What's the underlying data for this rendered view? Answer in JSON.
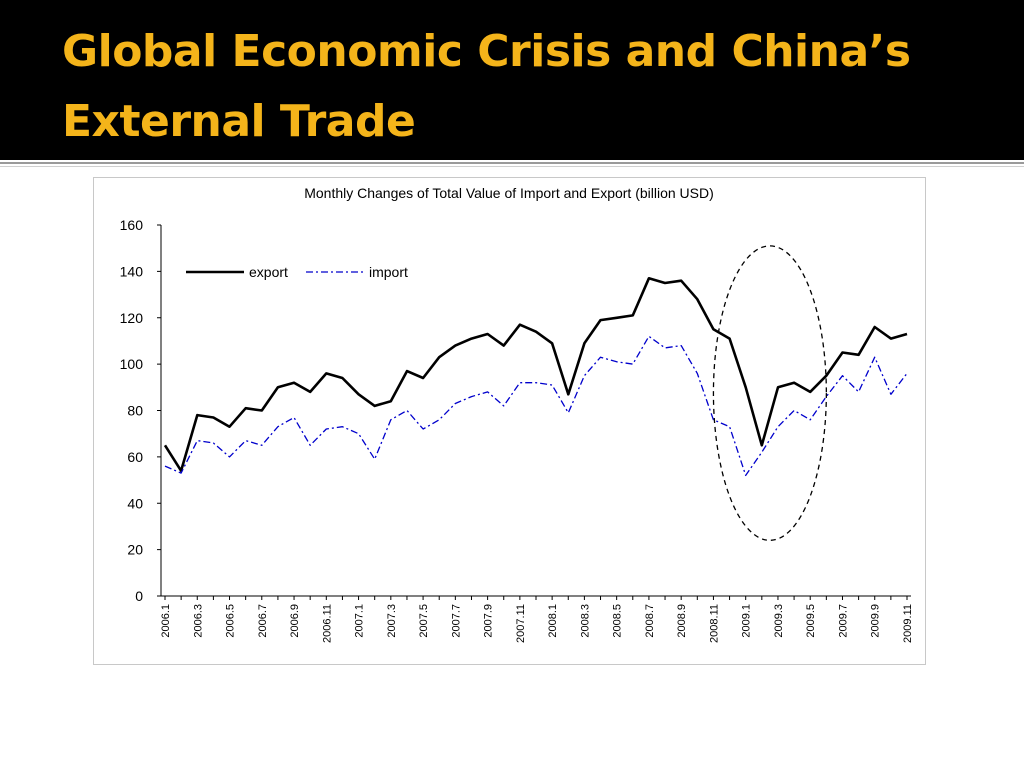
{
  "slide": {
    "title_line1": "Global Economic Crisis and China’s",
    "title_line2": "External Trade"
  },
  "colors": {
    "background_title": "#000000",
    "title_text": "#f4b41a",
    "export_line": "#000000",
    "import_line": "#0000cc"
  },
  "chart_data": {
    "type": "line",
    "title": "Monthly Changes of Total Value of Import and Export (billion USD)",
    "xlabel": "",
    "ylabel": "",
    "ylim": [
      0,
      160
    ],
    "yticks": [
      0,
      20,
      40,
      60,
      80,
      100,
      120,
      140,
      160
    ],
    "x": [
      "2006.1",
      "2006.2",
      "2006.3",
      "2006.4",
      "2006.5",
      "2006.6",
      "2006.7",
      "2006.8",
      "2006.9",
      "2006.10",
      "2006.11",
      "2006.12",
      "2007.1",
      "2007.2",
      "2007.3",
      "2007.4",
      "2007.5",
      "2007.6",
      "2007.7",
      "2007.8",
      "2007.9",
      "2007.10",
      "2007.11",
      "2007.12",
      "2008.1",
      "2008.2",
      "2008.3",
      "2008.4",
      "2008.5",
      "2008.6",
      "2008.7",
      "2008.8",
      "2008.9",
      "2008.10",
      "2008.11",
      "2008.12",
      "2009.1",
      "2009.2",
      "2009.3",
      "2009.4",
      "2009.5",
      "2009.6",
      "2009.7",
      "2009.8",
      "2009.9",
      "2009.10",
      "2009.11"
    ],
    "xtick_labels": [
      "2006.1",
      "2006.3",
      "2006.5",
      "2006.7",
      "2006.9",
      "2006.11",
      "2007.1",
      "2007.3",
      "2007.5",
      "2007.7",
      "2007.9",
      "2007.11",
      "2008.1",
      "2008.3",
      "2008.5",
      "2008.7",
      "2008.9",
      "2008.11",
      "2009.1",
      "2009.3",
      "2009.5",
      "2009.7",
      "2009.9",
      "2009.11"
    ],
    "legend_position": "top-left",
    "grid": false,
    "series": [
      {
        "name": "export",
        "style": "solid",
        "values": [
          65,
          54,
          78,
          77,
          73,
          81,
          80,
          90,
          92,
          88,
          96,
          94,
          87,
          82,
          84,
          97,
          94,
          103,
          108,
          111,
          113,
          108,
          117,
          114,
          109,
          87,
          109,
          119,
          120,
          121,
          137,
          135,
          136,
          128,
          115,
          111,
          90,
          65,
          90,
          92,
          88,
          95,
          105,
          104,
          116,
          111,
          113
        ]
      },
      {
        "name": "import",
        "style": "dash-dot",
        "values": [
          56,
          53,
          67,
          66,
          60,
          67,
          65,
          73,
          77,
          65,
          72,
          73,
          70,
          59,
          76,
          80,
          72,
          76,
          83,
          86,
          88,
          82,
          92,
          92,
          91,
          79,
          95,
          103,
          101,
          100,
          112,
          107,
          108,
          96,
          76,
          73,
          52,
          62,
          73,
          80,
          76,
          86,
          95,
          88,
          103,
          87,
          96
        ]
      }
    ],
    "annotation": {
      "shape": "dashed-ellipse",
      "x_range": [
        "2008.11",
        "2009.6"
      ],
      "y_range": [
        24,
        151
      ]
    }
  }
}
